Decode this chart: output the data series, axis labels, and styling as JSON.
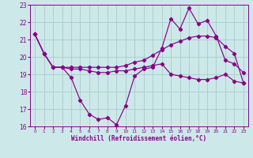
{
  "xlabel": "Windchill (Refroidissement éolien,°C)",
  "bg_color": "#cce8e8",
  "line_color": "#880088",
  "grid_color": "#aacccc",
  "xlim": [
    -0.5,
    23.5
  ],
  "ylim": [
    16,
    23
  ],
  "yticks": [
    16,
    17,
    18,
    19,
    20,
    21,
    22,
    23
  ],
  "xticks": [
    0,
    1,
    2,
    3,
    4,
    5,
    6,
    7,
    8,
    9,
    10,
    11,
    12,
    13,
    14,
    15,
    16,
    17,
    18,
    19,
    20,
    21,
    22,
    23
  ],
  "line1_x": [
    0,
    1,
    2,
    3,
    4,
    5,
    6,
    7,
    8,
    9,
    10,
    11,
    12,
    13,
    14,
    15,
    16,
    17,
    18,
    19,
    20,
    21,
    22,
    23
  ],
  "line1_y": [
    21.3,
    20.2,
    19.4,
    19.4,
    18.8,
    17.5,
    16.7,
    16.4,
    16.5,
    16.1,
    17.2,
    18.9,
    19.3,
    19.4,
    20.5,
    22.2,
    21.6,
    22.8,
    21.9,
    22.1,
    21.2,
    19.8,
    19.6,
    19.1
  ],
  "line2_x": [
    0,
    1,
    2,
    3,
    4,
    5,
    6,
    7,
    8,
    9,
    10,
    11,
    12,
    13,
    14,
    15,
    16,
    17,
    18,
    19,
    20,
    21,
    22,
    23
  ],
  "line2_y": [
    21.3,
    20.2,
    19.4,
    19.4,
    19.4,
    19.4,
    19.4,
    19.4,
    19.4,
    19.4,
    19.5,
    19.7,
    19.8,
    20.1,
    20.4,
    20.7,
    20.9,
    21.1,
    21.2,
    21.2,
    21.1,
    20.6,
    20.2,
    18.5
  ],
  "line3_x": [
    0,
    1,
    2,
    3,
    4,
    5,
    6,
    7,
    8,
    9,
    10,
    11,
    12,
    13,
    14,
    15,
    16,
    17,
    18,
    19,
    20,
    21,
    22,
    23
  ],
  "line3_y": [
    21.3,
    20.2,
    19.4,
    19.4,
    19.3,
    19.3,
    19.2,
    19.1,
    19.1,
    19.2,
    19.2,
    19.3,
    19.4,
    19.5,
    19.6,
    19.0,
    18.9,
    18.8,
    18.7,
    18.7,
    18.8,
    19.0,
    18.6,
    18.5
  ]
}
